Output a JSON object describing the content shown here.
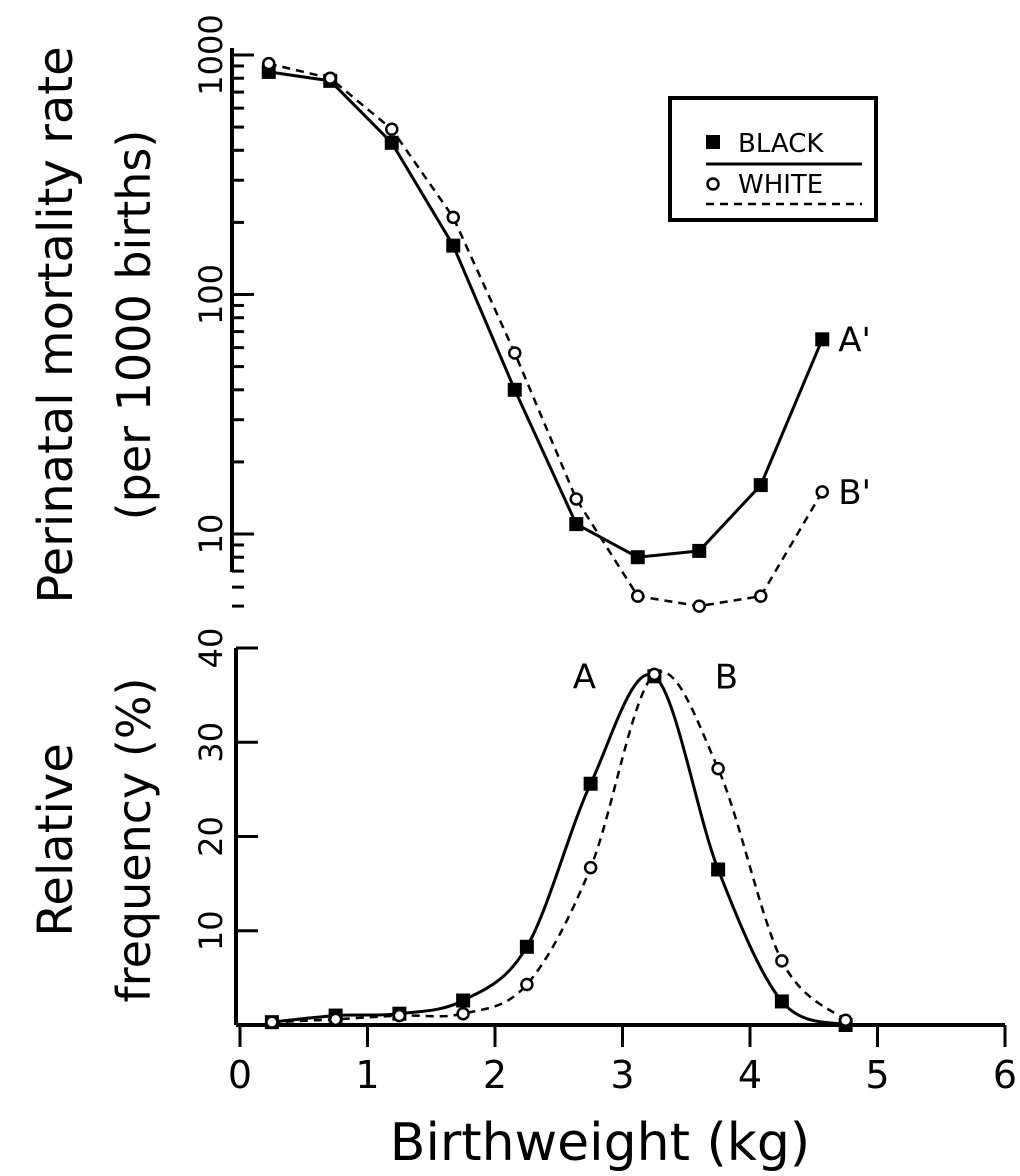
{
  "chart_data": [
    {
      "type": "line",
      "ylabel_line1": "Perinatal mortality rate",
      "ylabel_line2": "(per 1000 births)",
      "yscale": "log",
      "ylim": [
        5,
        1000
      ],
      "xlim": [
        0,
        6
      ],
      "yticks": [
        "10",
        "100",
        "1000"
      ],
      "legend_position": "top-right",
      "legend": [
        {
          "label": "BLACK",
          "marker": "filled-square",
          "line": "solid"
        },
        {
          "label": "WHITE",
          "marker": "open-circle",
          "line": "dashed"
        }
      ],
      "series": [
        {
          "name": "BLACK",
          "end_label": "A'",
          "x": [
            0.25,
            0.75,
            1.25,
            1.75,
            2.25,
            2.75,
            3.25,
            3.75,
            4.25,
            4.75
          ],
          "values": [
            850,
            780,
            430,
            160,
            40,
            11,
            8,
            8.5,
            16,
            65
          ]
        },
        {
          "name": "WHITE",
          "end_label": "B'",
          "x": [
            0.25,
            0.75,
            1.25,
            1.75,
            2.25,
            2.75,
            3.25,
            3.75,
            4.25,
            4.75
          ],
          "values": [
            920,
            800,
            490,
            210,
            57,
            14,
            5.5,
            5,
            5.5,
            15
          ]
        }
      ]
    },
    {
      "type": "line",
      "ylabel_line1": "Relative",
      "ylabel_line2": "frequency (%)",
      "xlabel": "Birthweight (kg)",
      "xlim": [
        0,
        6
      ],
      "ylim": [
        0,
        40
      ],
      "xticks": [
        "0",
        "1",
        "2",
        "3",
        "4",
        "5",
        "6"
      ],
      "yticks": [
        "10",
        "20",
        "30",
        "40"
      ],
      "series": [
        {
          "name": "BLACK",
          "peak_label": "A",
          "x": [
            0.25,
            0.75,
            1.25,
            1.75,
            2.25,
            2.75,
            3.25,
            3.75,
            4.25,
            4.75
          ],
          "values": [
            0.3,
            1.0,
            1.2,
            2.6,
            8.3,
            25.6,
            37.0,
            16.5,
            2.5,
            0.0
          ]
        },
        {
          "name": "WHITE",
          "peak_label": "B",
          "x": [
            0.25,
            0.75,
            1.25,
            1.75,
            2.25,
            2.75,
            3.25,
            3.75,
            4.25,
            4.75
          ],
          "values": [
            0.3,
            0.6,
            1.0,
            1.2,
            4.3,
            16.7,
            37.2,
            27.2,
            6.8,
            0.5
          ]
        }
      ]
    }
  ]
}
